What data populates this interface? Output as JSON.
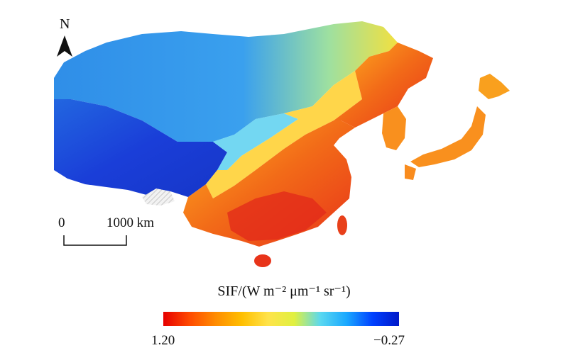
{
  "map": {
    "north_label": "N",
    "north_icon": "north-arrow-icon",
    "scale": {
      "start_label": "0",
      "end_label": "1000 km"
    },
    "legend": {
      "title": "SIF/(W m⁻² μm⁻¹ sr⁻¹)",
      "max_label": "1.20",
      "min_label": "−0.27",
      "gradient_colors": [
        "#e60000",
        "#ff4a00",
        "#ff8c00",
        "#ffbf00",
        "#ffe34a",
        "#e0f040",
        "#5ad8f0",
        "#1aa8ff",
        "#0040ff",
        "#0018c8"
      ]
    },
    "colors": {
      "plateau": "#1a3ed8",
      "north_desert": "#2a86ea",
      "mongolia": "#3ea6f0",
      "transition": "#ffd64a",
      "northeast": "#f47a1a",
      "southeast": "#e8401a",
      "japan_korea": "#f9901e",
      "no_data_hatch": "#cfcfcf"
    }
  }
}
